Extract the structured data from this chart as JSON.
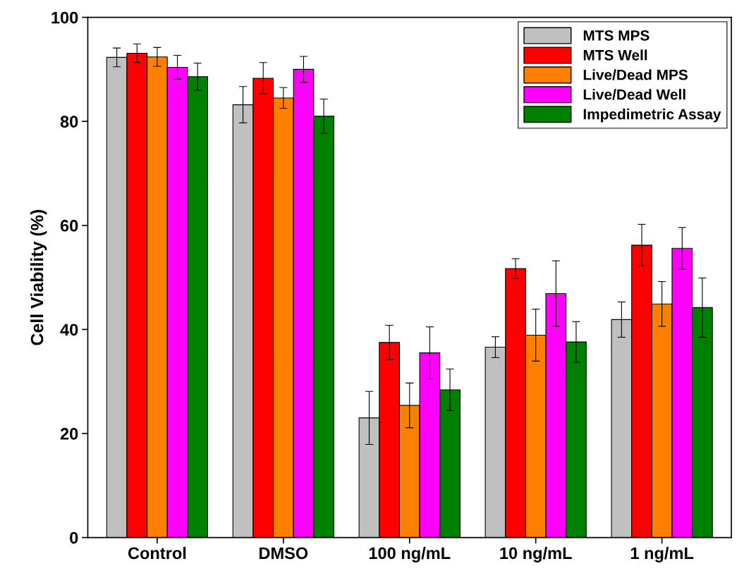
{
  "chart_data": {
    "type": "bar",
    "ylabel": "Cell Viability (%)",
    "categories": [
      "Control",
      "DMSO",
      "100 ng/mL",
      "10 ng/mL",
      "1 ng/mL"
    ],
    "series": [
      {
        "name": "MTS MPS",
        "color": "#c0c0c0",
        "values": [
          92.3,
          83.2,
          23.0,
          36.6,
          41.9
        ],
        "errors": [
          1.8,
          3.5,
          5.1,
          2.0,
          3.4
        ]
      },
      {
        "name": "MTS Well",
        "color": "#ff0000",
        "values": [
          93.1,
          88.3,
          37.5,
          51.7,
          56.2
        ],
        "errors": [
          1.8,
          3.0,
          3.3,
          1.9,
          4.0
        ]
      },
      {
        "name": "Live/Dead MPS",
        "color": "#ff8000",
        "values": [
          92.4,
          84.5,
          25.4,
          38.9,
          44.9
        ],
        "errors": [
          1.8,
          2.0,
          4.3,
          5.0,
          4.3
        ]
      },
      {
        "name": "Live/Dead Well",
        "color": "#ff00ff",
        "values": [
          90.4,
          90.0,
          35.5,
          46.9,
          55.6
        ],
        "errors": [
          2.3,
          2.5,
          5.0,
          6.3,
          4.0
        ]
      },
      {
        "name": "Impedimetric Assay",
        "color": "#008000",
        "values": [
          88.6,
          81.0,
          28.4,
          37.6,
          44.2
        ],
        "errors": [
          2.6,
          3.3,
          4.0,
          3.9,
          5.7
        ]
      }
    ],
    "ylim": [
      0,
      100
    ],
    "yticks": [
      0,
      20,
      40,
      60,
      80,
      100
    ],
    "grid": false,
    "legend": "top right"
  }
}
